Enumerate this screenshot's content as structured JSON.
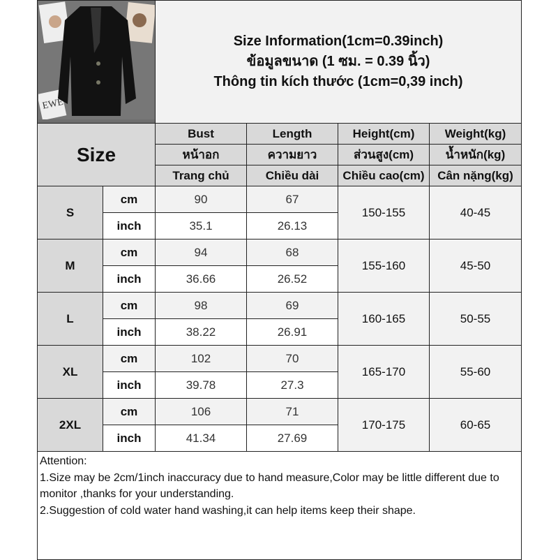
{
  "title": {
    "lines": [
      "Size Information(1cm=0.39inch)",
      "ข้อมูลขนาด (1 ซม. = 0.39 นิ้ว)",
      "Thông tin kích thước (1cm=0,39 inch)"
    ]
  },
  "product_image": {
    "label": "EWE"
  },
  "header": {
    "size_label": "Size",
    "columns": [
      [
        "Bust",
        "หน้าอก",
        "Trang chủ"
      ],
      [
        "Length",
        "ความยาว",
        "Chiều dài"
      ],
      [
        "Height(cm)",
        "ส่วนสูง(cm)",
        "Chiều cao(cm)"
      ],
      [
        "Weight(kg)",
        "น้ำหนัก(kg)",
        "Cân nặng(kg)"
      ]
    ]
  },
  "units": {
    "cm": "cm",
    "inch": "inch"
  },
  "rows": [
    {
      "size": "S",
      "cm": {
        "bust": "90",
        "length": "67"
      },
      "inch": {
        "bust": "35.1",
        "length": "26.13"
      },
      "height": "150-155",
      "weight": "40-45"
    },
    {
      "size": "M",
      "cm": {
        "bust": "94",
        "length": "68"
      },
      "inch": {
        "bust": "36.66",
        "length": "26.52"
      },
      "height": "155-160",
      "weight": "45-50"
    },
    {
      "size": "L",
      "cm": {
        "bust": "98",
        "length": "69"
      },
      "inch": {
        "bust": "38.22",
        "length": "26.91"
      },
      "height": "160-165",
      "weight": "50-55"
    },
    {
      "size": "XL",
      "cm": {
        "bust": "102",
        "length": "70"
      },
      "inch": {
        "bust": "39.78",
        "length": "27.3"
      },
      "height": "165-170",
      "weight": "55-60"
    },
    {
      "size": "2XL",
      "cm": {
        "bust": "106",
        "length": "71"
      },
      "inch": {
        "bust": "41.34",
        "length": "27.69"
      },
      "height": "170-175",
      "weight": "60-65"
    }
  ],
  "attention": {
    "heading": "Attention:",
    "lines": [
      "1.Size may be 2cm/1inch inaccuracy due to hand measure,Color may be little different due to monitor ,thanks for your understanding.",
      "2.Suggestion of cold water hand washing,it can help items keep their shape."
    ]
  }
}
